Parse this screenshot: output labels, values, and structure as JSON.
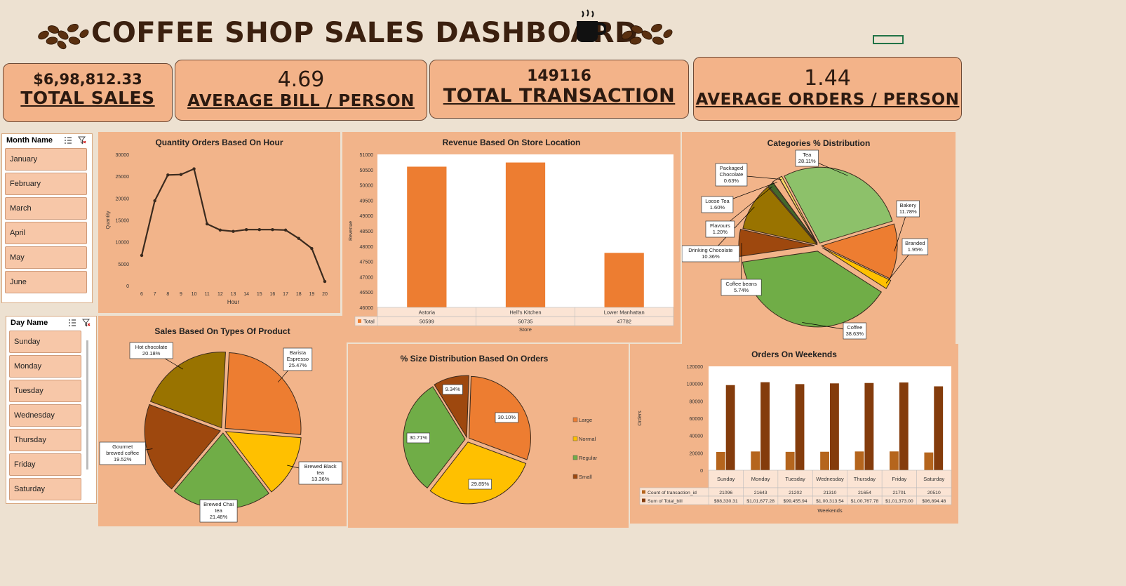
{
  "dashboard": {
    "title": "COFFEE SHOP SALES DASHBOARD",
    "colors": {
      "background": "#ede1d1",
      "panel": "#f2b48a",
      "kpi": "#f3b389",
      "title": "#3b200f"
    }
  },
  "kpis": {
    "total_sales": {
      "value": "$6,98,812.33",
      "label": "TOTAL SALES"
    },
    "avg_bill": {
      "value": "4.69",
      "label": "AVERAGE BILL / PERSON"
    },
    "total_transaction": {
      "value": "149116",
      "label": "TOTAL TRANSACTION"
    },
    "avg_orders": {
      "value": "1.44",
      "label": "AVERAGE ORDERS / PERSON"
    }
  },
  "month_slicer": {
    "title": "Month Name",
    "items": [
      "January",
      "February",
      "March",
      "April",
      "May",
      "June"
    ]
  },
  "day_slicer": {
    "title": "Day Name",
    "items": [
      "Sunday",
      "Monday",
      "Tuesday",
      "Wednesday",
      "Thursday",
      "Friday",
      "Saturday"
    ]
  },
  "chart_data": [
    {
      "id": "hourly",
      "type": "line",
      "title": "Quantity Orders Based On Hour",
      "xlabel": "Hour",
      "ylabel": "Quantity",
      "x": [
        6,
        7,
        8,
        9,
        10,
        11,
        12,
        13,
        14,
        15,
        16,
        17,
        18,
        19,
        20
      ],
      "values": [
        6900,
        19400,
        25300,
        25400,
        26700,
        14100,
        12700,
        12400,
        12800,
        12800,
        12800,
        12700,
        10800,
        8500,
        950
      ],
      "ylim": [
        0,
        30000
      ],
      "yticks": [
        0,
        5000,
        10000,
        15000,
        20000,
        25000,
        30000
      ],
      "color": "#3a2a1e"
    },
    {
      "id": "store",
      "type": "bar",
      "title": "Revenue Based On Store Location",
      "xlabel": "Store",
      "ylabel": "Revenue",
      "categories": [
        "Astoria",
        "Hell's Kitchen",
        "Lower Manhattan"
      ],
      "values": [
        50599,
        50735,
        47782
      ],
      "series_name": "Total",
      "ylim": [
        46000,
        51000
      ],
      "yticks": [
        46000,
        46500,
        47000,
        47500,
        48000,
        48500,
        49000,
        49500,
        50000,
        50500,
        51000
      ],
      "color": "#ed7d31"
    },
    {
      "id": "categories",
      "type": "pie",
      "title": "Categories  % Distribution",
      "slices": [
        {
          "label": "Tea",
          "value": 28.11,
          "pct": "28.11%",
          "color": "#8dc16a"
        },
        {
          "label": "Bakery",
          "value": 11.78,
          "pct": "11.78%",
          "color": "#ed7d31"
        },
        {
          "label": "Branded",
          "value": 1.95,
          "pct": "1.95%",
          "color": "#ffc000"
        },
        {
          "label": "Coffee",
          "value": 38.63,
          "pct": "38.63%",
          "color": "#70ad47"
        },
        {
          "label": "Coffee beans",
          "value": 5.74,
          "pct": "5.74%",
          "color": "#9e480e"
        },
        {
          "label": "Drinking Chocolate",
          "value": 10.36,
          "pct": "10.36%",
          "color": "#997300"
        },
        {
          "label": "Flavours",
          "value": 1.2,
          "pct": "1.20%",
          "color": "#43682b"
        },
        {
          "label": "Loose Tea",
          "value": 1.6,
          "pct": "1.60%",
          "color": "#f4b183"
        },
        {
          "label": "Packaged Chocolate",
          "value": 0.63,
          "pct": "0.63%",
          "color": "#ffd966"
        }
      ]
    },
    {
      "id": "product_types",
      "type": "pie",
      "title": "Sales Based On Types Of Product",
      "slices": [
        {
          "label": "Barista Espresso",
          "value": 25.47,
          "pct": "25.47%",
          "color": "#ed7d31"
        },
        {
          "label": "Brewed Black tea",
          "value": 13.36,
          "pct": "13.36%",
          "color": "#ffc000"
        },
        {
          "label": "Brewed Chai tea",
          "value": 21.48,
          "pct": "21.48%",
          "color": "#70ad47"
        },
        {
          "label": "Gourmet brewed coffee",
          "value": 19.52,
          "pct": "19.52%",
          "color": "#9e480e"
        },
        {
          "label": "Hot chocolate",
          "value": 20.18,
          "pct": "20.18%",
          "color": "#997300"
        }
      ]
    },
    {
      "id": "sizes",
      "type": "pie",
      "title": "% Size Distribution  Based On Orders",
      "slices": [
        {
          "label": "Large",
          "value": 30.1,
          "pct": "30.10%",
          "color": "#ed7d31"
        },
        {
          "label": "Normal",
          "value": 29.85,
          "pct": "29.85%",
          "color": "#ffc000"
        },
        {
          "label": "Regular",
          "value": 30.71,
          "pct": "30.71%",
          "color": "#70ad47"
        },
        {
          "label": "Small",
          "value": 9.34,
          "pct": "9.34%",
          "color": "#9e480e"
        }
      ],
      "legend": [
        "Large",
        "Normal",
        "Regular",
        "Small"
      ]
    },
    {
      "id": "weekdays",
      "type": "bar",
      "title": "Orders On Weekends",
      "xlabel": "Weekends",
      "ylabel": "Orders",
      "categories": [
        "Sunday",
        "Monday",
        "Tuesday",
        "Wednesday",
        "Thursday",
        "Friday",
        "Saturday"
      ],
      "series": [
        {
          "name": "Count of transaction_id",
          "values": [
            21096,
            21643,
            21202,
            21310,
            21654,
            21701,
            20510
          ],
          "labels": [
            "21096",
            "21643",
            "21202",
            "21310",
            "21654",
            "21701",
            "20510"
          ],
          "color": "#b5651d"
        },
        {
          "name": "Sum of Total_bill",
          "values": [
            98330.31,
            101677.28,
            99455.94,
            100313.54,
            100767.78,
            101373.0,
            96894.48
          ],
          "labels": [
            "$98,330.31",
            "$1,01,677.28",
            "$99,455.94",
            "$1,00,313.54",
            "$1,00,767.78",
            "$1,01,373.00",
            "$96,894.48"
          ],
          "color": "#843c0c"
        }
      ],
      "ylim": [
        0,
        120000
      ],
      "yticks": [
        0,
        20000,
        40000,
        60000,
        80000,
        100000,
        120000
      ]
    }
  ]
}
